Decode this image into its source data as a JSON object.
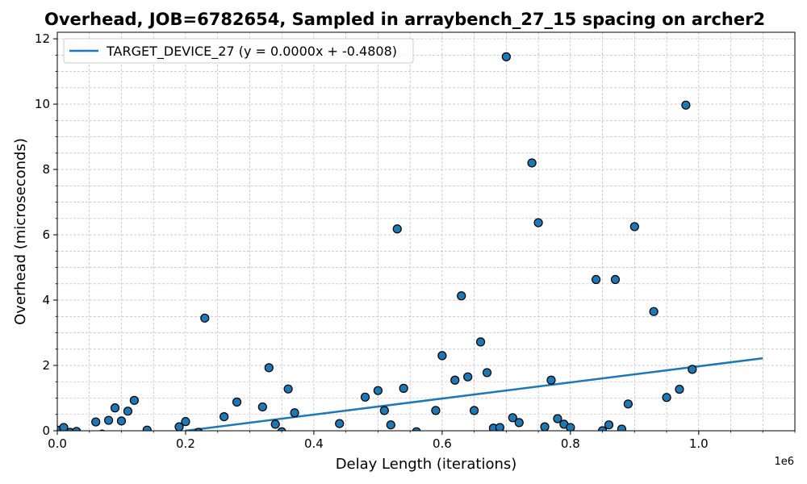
{
  "chart_data": {
    "type": "scatter",
    "title": "Overhead, JOB=6782654, Sampled in arraybench_27_15 spacing on archer2",
    "xlabel": "Delay Length (iterations)",
    "ylabel": "Overhead (microseconds)",
    "x_offset_label": "1e6",
    "xlim": [
      0,
      1150000
    ],
    "ylim": [
      0,
      12.2
    ],
    "x_ticks": [
      0,
      200000,
      400000,
      600000,
      800000,
      1000000
    ],
    "x_tick_labels": [
      "0.0",
      "0.2",
      "0.4",
      "0.6",
      "0.8",
      "1.0"
    ],
    "y_ticks": [
      0,
      2,
      4,
      6,
      8,
      10,
      12
    ],
    "y_tick_labels": [
      "0",
      "2",
      "4",
      "6",
      "8",
      "10",
      "12"
    ],
    "grid": true,
    "legend_position": "top-left",
    "colors": {
      "points": "#1f77b4",
      "point_edge": "#000000",
      "fit_line": "#1f77b4",
      "grid": "#b0b0b0"
    },
    "fit_line": {
      "label": "TARGET_DEVICE_27 (y = 0.0000x + -0.4808)",
      "x": [
        200000,
        1100000
      ],
      "y": [
        0.0,
        2.22
      ]
    },
    "series": [
      {
        "x": [
          0,
          10000,
          20000,
          30000,
          60000,
          70000,
          80000,
          90000,
          100000,
          110000,
          120000,
          140000,
          190000,
          200000,
          220000,
          230000,
          260000,
          280000,
          320000,
          330000,
          340000,
          350000,
          360000,
          370000,
          440000,
          480000,
          500000,
          510000,
          520000,
          530000,
          540000,
          560000,
          590000,
          600000,
          620000,
          630000,
          640000,
          650000,
          660000,
          670000,
          680000,
          690000,
          700000,
          710000,
          720000,
          740000,
          750000,
          760000,
          770000,
          780000,
          790000,
          800000,
          840000,
          850000,
          860000,
          870000,
          880000,
          890000,
          900000,
          930000,
          950000,
          970000,
          980000,
          990000
        ],
        "y": [
          0.02,
          0.1,
          -0.05,
          -0.02,
          0.27,
          -0.1,
          0.32,
          0.7,
          0.3,
          0.6,
          0.93,
          0.02,
          0.12,
          0.28,
          -0.05,
          3.45,
          0.43,
          0.88,
          0.73,
          1.93,
          0.2,
          -0.03,
          1.28,
          0.55,
          0.22,
          1.03,
          1.23,
          0.62,
          0.18,
          6.18,
          1.3,
          -0.03,
          0.62,
          2.3,
          1.55,
          4.13,
          1.65,
          0.62,
          2.72,
          1.78,
          0.08,
          0.1,
          11.45,
          0.4,
          0.25,
          8.2,
          6.37,
          0.12,
          1.55,
          0.37,
          0.2,
          0.1,
          4.63,
          0.0,
          0.18,
          4.63,
          0.05,
          0.82,
          6.25,
          3.65,
          1.02,
          1.27,
          9.97,
          1.88
        ]
      }
    ]
  }
}
